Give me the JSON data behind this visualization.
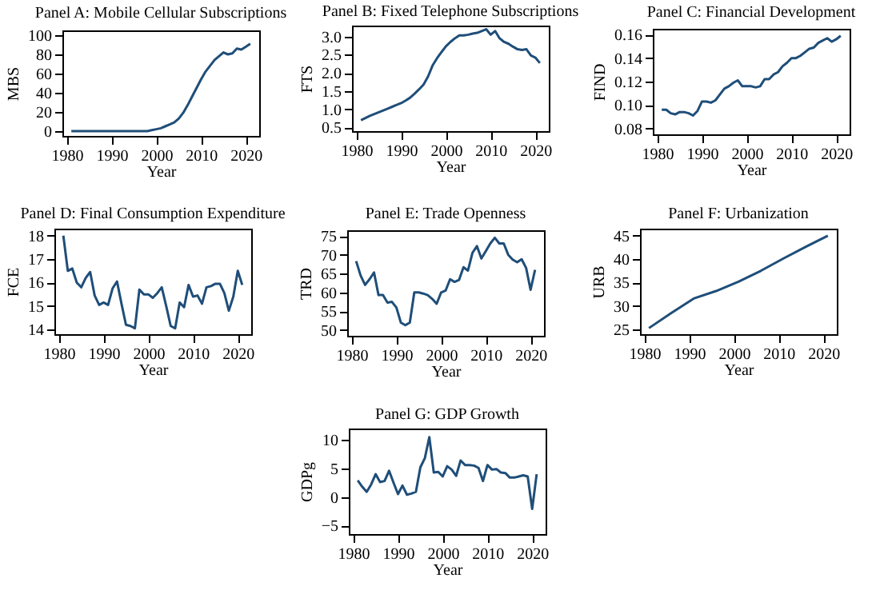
{
  "chart_data": [
    {
      "type": "line",
      "title": "Panel A: Mobile Cellular Subscriptions",
      "xlabel": "Year",
      "ylabel": "MBS",
      "color": "#1f4e79",
      "xlim": [
        1979,
        2023
      ],
      "xticks": [
        1980,
        1990,
        2000,
        2010,
        2020
      ],
      "ylim": [
        -5,
        105
      ],
      "yticks": [
        0,
        20,
        40,
        60,
        80,
        100
      ],
      "x": [
        1981,
        1982,
        1983,
        1984,
        1985,
        1986,
        1987,
        1988,
        1989,
        1990,
        1991,
        1992,
        1993,
        1994,
        1995,
        1996,
        1997,
        1998,
        1999,
        2000,
        2001,
        2002,
        2003,
        2004,
        2005,
        2006,
        2007,
        2008,
        2009,
        2010,
        2011,
        2012,
        2013,
        2014,
        2015,
        2016,
        2017,
        2018,
        2019,
        2020,
        2021
      ],
      "values": [
        0,
        0,
        0,
        0,
        0,
        0,
        0,
        0,
        0,
        0,
        0,
        0,
        0,
        0,
        0,
        0,
        0,
        0,
        1,
        2,
        3,
        5,
        7,
        9,
        13,
        19,
        27,
        36,
        45,
        54,
        62,
        68,
        74,
        78,
        82,
        80,
        81,
        86,
        85,
        88,
        91
      ]
    },
    {
      "type": "line",
      "title": "Panel B: Fixed Telephone Subscriptions",
      "xlabel": "Year",
      "ylabel": "FTS",
      "color": "#1f4e79",
      "xlim": [
        1979,
        2023
      ],
      "xticks": [
        1980,
        1990,
        2000,
        2010,
        2020
      ],
      "ylim": [
        0.4,
        3.3
      ],
      "yticks": [
        {
          "value": 0.5,
          "label": "0.5"
        },
        {
          "value": 1,
          "label": "1.0"
        },
        {
          "value": 1.5,
          "label": "1.5"
        },
        {
          "value": 2,
          "label": "2.0"
        },
        {
          "value": 2.5,
          "label": "2.5"
        },
        {
          "value": 3,
          "label": "3.0"
        }
      ],
      "x": [
        1981,
        1982,
        1983,
        1984,
        1985,
        1986,
        1987,
        1988,
        1989,
        1990,
        1991,
        1992,
        1993,
        1994,
        1995,
        1996,
        1997,
        1998,
        1999,
        2000,
        2001,
        2002,
        2003,
        2004,
        2005,
        2006,
        2007,
        2008,
        2009,
        2010,
        2011,
        2012,
        2013,
        2014,
        2015,
        2016,
        2017,
        2018,
        2019,
        2020,
        2021
      ],
      "values": [
        0.7,
        0.76,
        0.82,
        0.87,
        0.92,
        0.97,
        1.02,
        1.07,
        1.12,
        1.17,
        1.24,
        1.32,
        1.43,
        1.55,
        1.68,
        1.9,
        2.2,
        2.4,
        2.57,
        2.73,
        2.85,
        2.95,
        3.03,
        3.03,
        3.05,
        3.08,
        3.1,
        3.15,
        3.2,
        3.05,
        3.15,
        2.95,
        2.85,
        2.8,
        2.72,
        2.65,
        2.63,
        2.65,
        2.48,
        2.42,
        2.27
      ]
    },
    {
      "type": "line",
      "title": "Panel C: Financial Development",
      "xlabel": "Year",
      "ylabel": "FIND",
      "color": "#1f4e79",
      "xlim": [
        1979,
        2023
      ],
      "xticks": [
        1980,
        1990,
        2000,
        2010,
        2020
      ],
      "ylim": [
        0.075,
        0.165
      ],
      "yticks": [
        0.08,
        {
          "value": 0.1,
          "label": "0.10"
        },
        0.12,
        0.14,
        0.16
      ],
      "x": [
        1981,
        1982,
        1983,
        1984,
        1985,
        1986,
        1987,
        1988,
        1989,
        1990,
        1991,
        1992,
        1993,
        1994,
        1995,
        1996,
        1997,
        1998,
        1999,
        2000,
        2001,
        2002,
        2003,
        2004,
        2005,
        2006,
        2007,
        2008,
        2009,
        2010,
        2011,
        2012,
        2013,
        2014,
        2015,
        2016,
        2017,
        2018,
        2019,
        2020,
        2021
      ],
      "values": [
        0.096,
        0.096,
        0.093,
        0.092,
        0.094,
        0.094,
        0.093,
        0.091,
        0.095,
        0.103,
        0.103,
        0.102,
        0.104,
        0.109,
        0.114,
        0.116,
        0.119,
        0.121,
        0.116,
        0.116,
        0.116,
        0.115,
        0.116,
        0.122,
        0.122,
        0.126,
        0.128,
        0.133,
        0.136,
        0.14,
        0.14,
        0.142,
        0.145,
        0.148,
        0.149,
        0.153,
        0.155,
        0.157,
        0.154,
        0.156,
        0.159
      ]
    },
    {
      "type": "line",
      "title": "Panel D: Final Consumption Expenditure",
      "xlabel": "Year",
      "ylabel": "FCE",
      "color": "#1f4e79",
      "xlim": [
        1979,
        2023
      ],
      "xticks": [
        1980,
        1990,
        2000,
        2010,
        2020
      ],
      "ylim": [
        13.8,
        18.3
      ],
      "yticks": [
        14,
        15,
        16,
        17,
        18
      ],
      "x": [
        1981,
        1982,
        1983,
        1984,
        1985,
        1986,
        1987,
        1988,
        1989,
        1990,
        1991,
        1992,
        1993,
        1994,
        1995,
        1996,
        1997,
        1998,
        1999,
        2000,
        2001,
        2002,
        2003,
        2004,
        2005,
        2006,
        2007,
        2008,
        2009,
        2010,
        2011,
        2012,
        2013,
        2014,
        2015,
        2016,
        2017,
        2018,
        2019,
        2020,
        2021
      ],
      "values": [
        18.0,
        16.5,
        16.6,
        16.0,
        15.8,
        16.2,
        16.45,
        15.45,
        15.05,
        15.15,
        15.05,
        15.75,
        16.05,
        15.1,
        14.2,
        14.15,
        14.05,
        15.7,
        15.5,
        15.5,
        15.35,
        15.55,
        15.8,
        15.0,
        14.15,
        14.05,
        15.15,
        14.95,
        15.9,
        15.4,
        15.45,
        15.1,
        15.8,
        15.85,
        15.95,
        15.95,
        15.55,
        14.8,
        15.4,
        16.5,
        15.9
      ]
    },
    {
      "type": "line",
      "title": "Panel E: Trade Openness",
      "xlabel": "Year",
      "ylabel": "TRD",
      "color": "#1f4e79",
      "xlim": [
        1979,
        2023
      ],
      "xticks": [
        1980,
        1990,
        2000,
        2010,
        2020
      ],
      "ylim": [
        48.5,
        76.5
      ],
      "yticks": [
        50,
        55,
        60,
        65,
        70,
        75
      ],
      "x": [
        1981,
        1982,
        1983,
        1984,
        1985,
        1986,
        1987,
        1988,
        1989,
        1990,
        1991,
        1992,
        1993,
        1994,
        1995,
        1996,
        1997,
        1998,
        1999,
        2000,
        2001,
        2002,
        2003,
        2004,
        2005,
        2006,
        2007,
        2008,
        2009,
        2010,
        2011,
        2012,
        2013,
        2014,
        2015,
        2016,
        2017,
        2018,
        2019,
        2020,
        2021
      ],
      "values": [
        68.3,
        64.5,
        62,
        63.5,
        65.3,
        59.3,
        59.3,
        57.3,
        57.5,
        56,
        52,
        51.3,
        52,
        60,
        60,
        59.7,
        59.3,
        58.3,
        57,
        60,
        60.5,
        63.5,
        62.8,
        63.3,
        66.7,
        65.8,
        70.5,
        72.3,
        69,
        71,
        73,
        74.5,
        73,
        73,
        70,
        68.7,
        68,
        68.8,
        66.5,
        60.7,
        66
      ]
    },
    {
      "type": "line",
      "title": "Panel F: Urbanization",
      "xlabel": "Year",
      "ylabel": "URB",
      "color": "#1f4e79",
      "xlim": [
        1979,
        2023
      ],
      "xticks": [
        1980,
        1990,
        2000,
        2010,
        2020
      ],
      "ylim": [
        24,
        46.5
      ],
      "yticks": [
        25,
        30,
        35,
        40,
        45
      ],
      "x": [
        1981,
        1986,
        1991,
        1996,
        2001,
        2006,
        2011,
        2016,
        2021
      ],
      "values": [
        25.3,
        28.5,
        31.6,
        33.2,
        35.2,
        37.5,
        40.1,
        42.6,
        45.0
      ]
    },
    {
      "type": "line",
      "title": "Panel G: GDP Growth",
      "xlabel": "Year",
      "ylabel": "GDPg",
      "color": "#1f4e79",
      "xlim": [
        1979,
        2023
      ],
      "xticks": [
        1980,
        1990,
        2000,
        2010,
        2020
      ],
      "ylim": [
        -6.5,
        12
      ],
      "yticks": [
        -5,
        0,
        5,
        10
      ],
      "x": [
        1981,
        1982,
        1983,
        1984,
        1985,
        1986,
        1987,
        1988,
        1989,
        1990,
        1991,
        1992,
        1993,
        1994,
        1995,
        1996,
        1997,
        1998,
        1999,
        2000,
        2001,
        2002,
        2003,
        2004,
        2005,
        2006,
        2007,
        2008,
        2009,
        2010,
        2011,
        2012,
        2013,
        2014,
        2015,
        2016,
        2017,
        2018,
        2019,
        2020,
        2021
      ],
      "values": [
        2.9,
        1.8,
        0.9,
        2.2,
        4.0,
        2.6,
        2.8,
        4.6,
        2.5,
        0.5,
        2.0,
        0.4,
        0.6,
        0.9,
        5.2,
        6.8,
        10.5,
        4.3,
        4.4,
        3.6,
        5.4,
        4.8,
        3.7,
        6.4,
        5.6,
        5.6,
        5.5,
        5.1,
        2.8,
        5.6,
        4.8,
        4.9,
        4.3,
        4.2,
        3.4,
        3.4,
        3.6,
        3.8,
        3.6,
        -2.1,
        4.0
      ]
    }
  ]
}
